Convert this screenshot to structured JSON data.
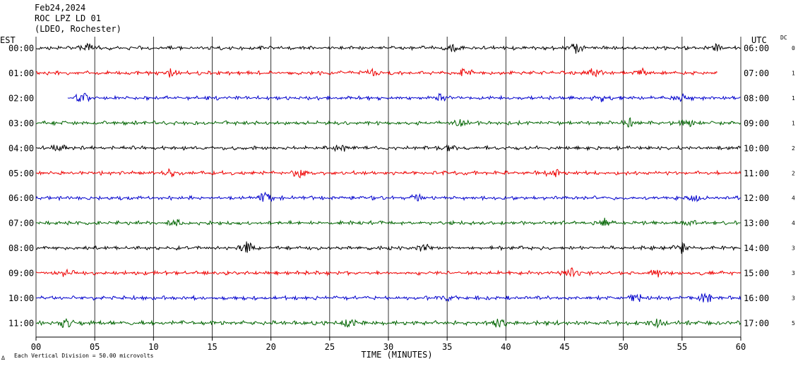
{
  "header": {
    "date": "Feb24,2024",
    "station": "ROC LPZ LD 01",
    "network": "(LDEO, Rochester)"
  },
  "axes": {
    "left_zone": "EST",
    "right_zone": "UTC",
    "dc_header": "DC",
    "xlabel": "TIME (MINUTES)"
  },
  "footnote": {
    "mark": "∆",
    "text": "Each Vertical Division =   50.00 microvolts"
  },
  "chart_data": {
    "type": "line",
    "title": "Feb24,2024 ROC LPZ LD 01 (LDEO, Rochester)",
    "xlabel": "TIME (MINUTES)",
    "ylabel": "",
    "xlim": [
      0,
      60
    ],
    "x_ticks": [
      0,
      5,
      10,
      15,
      20,
      25,
      30,
      35,
      40,
      45,
      50,
      55,
      60
    ],
    "x_tick_labels": [
      "00",
      "05",
      "10",
      "15",
      "20",
      "25",
      "30",
      "35",
      "40",
      "45",
      "50",
      "55",
      "60"
    ],
    "vertical_grid": true,
    "colors": [
      "#000000",
      "#ee0000",
      "#0000cc",
      "#006400"
    ],
    "rows": [
      {
        "est": "00:00",
        "utc": "06:00",
        "dc": "0",
        "start_min": 0,
        "end_min": 60,
        "amp": 3,
        "bursts": [
          [
            4.5,
            5
          ],
          [
            46,
            6
          ],
          [
            35.5,
            4
          ],
          [
            58,
            4
          ]
        ]
      },
      {
        "est": "01:00",
        "utc": "07:00",
        "dc": "1",
        "start_min": 0,
        "end_min": 58,
        "amp": 3,
        "bursts": [
          [
            11.5,
            5
          ],
          [
            28.5,
            6
          ],
          [
            36.5,
            5
          ],
          [
            47.5,
            6
          ],
          [
            51.5,
            5
          ]
        ]
      },
      {
        "est": "02:00",
        "utc": "08:00",
        "dc": "1",
        "start_min": 2.7,
        "end_min": 60,
        "amp": 3,
        "bursts": [
          [
            4,
            7
          ],
          [
            34.5,
            5
          ],
          [
            48,
            4
          ],
          [
            55,
            4
          ]
        ]
      },
      {
        "est": "03:00",
        "utc": "09:00",
        "dc": "1",
        "start_min": 0,
        "end_min": 60,
        "amp": 3,
        "bursts": [
          [
            36,
            5
          ],
          [
            50.5,
            5
          ],
          [
            55.5,
            4
          ]
        ]
      },
      {
        "est": "04:00",
        "utc": "10:00",
        "dc": "2",
        "start_min": 0,
        "end_min": 60,
        "amp": 3,
        "bursts": [
          [
            2,
            5
          ],
          [
            26,
            4
          ],
          [
            35,
            5
          ]
        ]
      },
      {
        "est": "05:00",
        "utc": "11:00",
        "dc": "2",
        "start_min": 0,
        "end_min": 60,
        "amp": 3,
        "bursts": [
          [
            11.5,
            6
          ],
          [
            22.5,
            6
          ],
          [
            44,
            5
          ]
        ]
      },
      {
        "est": "06:00",
        "utc": "12:00",
        "dc": "4",
        "start_min": 0,
        "end_min": 60,
        "amp": 3,
        "bursts": [
          [
            19.5,
            7
          ],
          [
            32.5,
            5
          ],
          [
            56,
            4
          ]
        ]
      },
      {
        "est": "07:00",
        "utc": "13:00",
        "dc": "4",
        "start_min": 0,
        "end_min": 60,
        "amp": 3,
        "bursts": [
          [
            12,
            5
          ],
          [
            48.5,
            6
          ],
          [
            55.5,
            4
          ]
        ]
      },
      {
        "est": "08:00",
        "utc": "14:00",
        "dc": "3",
        "start_min": 0,
        "end_min": 60,
        "amp": 3,
        "bursts": [
          [
            18,
            8
          ],
          [
            33,
            6
          ],
          [
            55,
            6
          ]
        ]
      },
      {
        "est": "09:00",
        "utc": "15:00",
        "dc": "3",
        "start_min": 0,
        "end_min": 60,
        "amp": 3,
        "bursts": [
          [
            2.5,
            4
          ],
          [
            45.5,
            6
          ],
          [
            53,
            5
          ]
        ]
      },
      {
        "est": "10:00",
        "utc": "16:00",
        "dc": "3",
        "start_min": 0,
        "end_min": 60,
        "amp": 3,
        "bursts": [
          [
            51,
            5
          ],
          [
            57,
            7
          ],
          [
            35,
            4
          ]
        ]
      },
      {
        "est": "11:00",
        "utc": "17:00",
        "dc": "5",
        "start_min": 0,
        "end_min": 60,
        "amp": 3.5,
        "bursts": [
          [
            2.5,
            6
          ],
          [
            26.5,
            6
          ],
          [
            39.5,
            5
          ],
          [
            53,
            5
          ]
        ]
      }
    ]
  }
}
